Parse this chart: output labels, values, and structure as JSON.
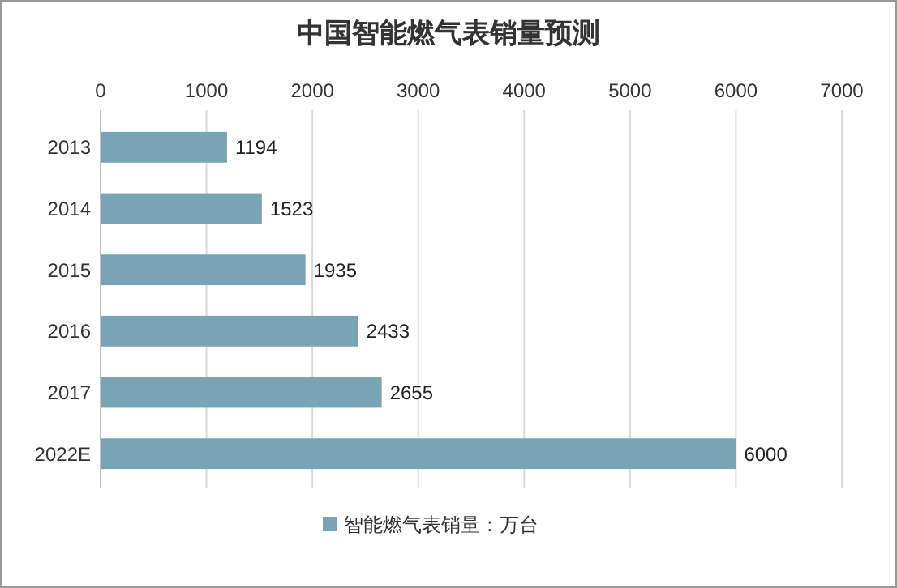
{
  "chart_data": {
    "type": "bar",
    "title": "中国智能燃气表销量预测",
    "orientation": "horizontal",
    "categories": [
      "2013",
      "2014",
      "2015",
      "2016",
      "2017",
      "2022E"
    ],
    "series": [
      {
        "name": "智能燃气表销量：万台",
        "color": "#79a4b6",
        "values": [
          1194,
          1523,
          1935,
          2433,
          2655,
          6000
        ]
      }
    ],
    "xlim": [
      0,
      7000
    ],
    "xticks": [
      0,
      1000,
      2000,
      3000,
      4000,
      5000,
      6000,
      7000
    ],
    "grid": "x",
    "legend": "bottom",
    "data_labels": true
  }
}
